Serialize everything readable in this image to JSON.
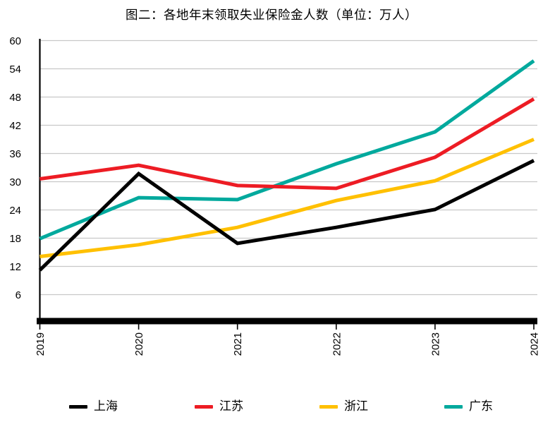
{
  "page": {
    "background_color": "#FFFFFF"
  },
  "chart_data": {
    "type": "line",
    "title": "图二：各地年末领取失业保险金人数（单位：万人）",
    "categories": [
      "2019",
      "2020",
      "2021",
      "2022",
      "2023",
      "2024"
    ],
    "series": [
      {
        "name": "上海",
        "key": "shanghai",
        "color": "#000000",
        "values": [
          11.2,
          31.7,
          16.9,
          20.3,
          24.1,
          34.5
        ]
      },
      {
        "name": "江苏",
        "key": "jiangsu",
        "color": "#ED1C24",
        "values": [
          30.6,
          33.5,
          29.2,
          28.6,
          35.2,
          47.6
        ]
      },
      {
        "name": "浙江",
        "key": "zhejiang",
        "color": "#FFC000",
        "values": [
          14.1,
          16.6,
          20.3,
          26.0,
          30.2,
          39.0
        ]
      },
      {
        "name": "广东",
        "key": "guangdong",
        "color": "#00A99D",
        "values": [
          17.9,
          26.6,
          26.2,
          33.8,
          40.6,
          55.7
        ]
      }
    ],
    "draw_order": [
      3,
      2,
      1,
      0
    ],
    "ylim": [
      0,
      60
    ],
    "yticks": [
      6,
      12,
      18,
      24,
      30,
      36,
      42,
      48,
      54,
      60
    ],
    "grid": "horizontal",
    "gridline_color": "#C8C8C8",
    "axis_color": "#000000",
    "tick_label_color": "#000000",
    "x_tick_label_rotation": -90,
    "legend_position": "bottom"
  }
}
